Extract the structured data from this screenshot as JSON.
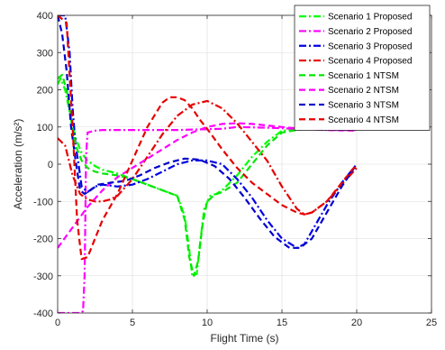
{
  "chart_data": {
    "type": "line",
    "xlabel": "Flight Time (s)",
    "ylabel": "Acceleration (m/s²)",
    "xlim": [
      0,
      25
    ],
    "ylim": [
      -400,
      400
    ],
    "xticks": [
      "0",
      "5",
      "10",
      "15",
      "20",
      "25"
    ],
    "yticks": [
      "-400",
      "-300",
      "-200",
      "-100",
      "0",
      "100",
      "200",
      "300",
      "400"
    ],
    "grid": true,
    "legend_position": "top-right",
    "series": [
      {
        "name": "Scenario 1 Proposed",
        "color": "#00ff00",
        "style": "dash-dot",
        "x": [
          0,
          0.2,
          0.5,
          0.8,
          1.2,
          1.6,
          2.0,
          2.5,
          3,
          4,
          5,
          6,
          7,
          8,
          8.5,
          8.8,
          9.0,
          9.3,
          9.5,
          9.8,
          10.2,
          10.6,
          11,
          12,
          13,
          14,
          15,
          16.5
        ],
        "y": [
          215,
          230,
          200,
          140,
          70,
          30,
          10,
          -5,
          -15,
          -25,
          -40,
          -55,
          -70,
          -85,
          -140,
          -230,
          -300,
          -295,
          -220,
          -120,
          -85,
          -80,
          -70,
          -30,
          20,
          60,
          90,
          95
        ]
      },
      {
        "name": "Scenario 2 Proposed",
        "color": "#ff00ff",
        "style": "dash-dot",
        "x": [
          0,
          1.5,
          1.7,
          1.8,
          1.85,
          1.9,
          2.0,
          2.5,
          3,
          5,
          8,
          11,
          12,
          14,
          16,
          18,
          20
        ],
        "y": [
          -400,
          -400,
          -395,
          -300,
          -150,
          20,
          85,
          90,
          92,
          92,
          92,
          95,
          100,
          98,
          95,
          92,
          92
        ]
      },
      {
        "name": "Scenario 3 Proposed",
        "color": "#0000e6",
        "style": "dash-dot",
        "x": [
          0,
          0.5,
          0.8,
          1.0,
          1.2,
          1.4,
          1.6,
          2.0,
          2.5,
          3.0,
          4,
          5,
          6,
          7,
          8,
          9,
          10,
          11,
          12,
          13,
          14,
          15,
          16,
          16.5,
          17,
          18,
          19,
          20
        ],
        "y": [
          400,
          400,
          300,
          150,
          50,
          0,
          -60,
          -75,
          -60,
          -55,
          -60,
          -55,
          -40,
          -20,
          0,
          10,
          10,
          0,
          -40,
          -90,
          -150,
          -200,
          -225,
          -215,
          -180,
          -110,
          -50,
          0
        ]
      },
      {
        "name": "Scenario 4 Proposed",
        "color": "#e60000",
        "style": "dash-dot",
        "x": [
          0,
          0.5,
          1.0,
          1.5,
          2,
          2.5,
          3,
          3.5,
          4,
          5,
          6,
          7,
          8,
          9,
          10,
          11,
          12,
          13,
          14,
          15,
          16,
          16.5,
          17,
          18,
          19,
          20
        ],
        "y": [
          70,
          50,
          -30,
          -80,
          -95,
          -100,
          -100,
          -95,
          -85,
          -40,
          20,
          80,
          130,
          160,
          170,
          150,
          110,
          60,
          10,
          -60,
          -120,
          -135,
          -130,
          -100,
          -55,
          -10
        ]
      },
      {
        "name": "Scenario 1 NTSM",
        "color": "#00e600",
        "style": "dashed",
        "x": [
          0,
          0.3,
          0.6,
          0.9,
          1.2,
          1.6,
          2.0,
          2.5,
          3,
          4,
          5,
          6,
          7,
          8,
          8.5,
          8.8,
          9.1,
          9.4,
          9.7,
          10,
          10.5,
          11,
          12,
          13,
          14,
          15,
          16.5
        ],
        "y": [
          230,
          240,
          200,
          120,
          50,
          10,
          -10,
          -20,
          -25,
          -30,
          -40,
          -55,
          -70,
          -85,
          -150,
          -250,
          -300,
          -260,
          -160,
          -100,
          -82,
          -75,
          -50,
          0,
          50,
          85,
          95
        ]
      },
      {
        "name": "Scenario 2 NTSM",
        "color": "#ff00ff",
        "style": "dashed",
        "x": [
          0,
          1,
          2,
          3,
          4,
          5,
          6,
          7,
          8,
          9,
          10,
          11,
          12,
          13,
          14,
          15,
          16,
          17,
          18,
          19,
          20
        ],
        "y": [
          -225,
          -170,
          -115,
          -70,
          -35,
          -10,
          15,
          40,
          65,
          85,
          100,
          108,
          110,
          108,
          104,
          100,
          96,
          94,
          92,
          91,
          90
        ]
      },
      {
        "name": "Scenario 3 NTSM",
        "color": "#0000cc",
        "style": "dashed",
        "x": [
          0,
          0.3,
          0.6,
          0.9,
          1.2,
          1.5,
          1.8,
          2.2,
          2.7,
          3.5,
          4.5,
          5.5,
          6.5,
          7.5,
          8.5,
          9.5,
          10.5,
          11.5,
          12.5,
          13.5,
          14.5,
          15.5,
          16.2,
          17,
          18,
          19,
          20
        ],
        "y": [
          400,
          350,
          250,
          100,
          10,
          -70,
          -80,
          -70,
          -55,
          -50,
          -45,
          -30,
          -10,
          5,
          15,
          12,
          -5,
          -40,
          -90,
          -145,
          -195,
          -225,
          -225,
          -200,
          -130,
          -60,
          0
        ]
      },
      {
        "name": "Scenario 4 NTSM",
        "color": "#e60000",
        "style": "dashed",
        "x": [
          0,
          0.6,
          1.0,
          1.3,
          1.6,
          2.0,
          2.5,
          3,
          4,
          5,
          6,
          7,
          7.5,
          8,
          8.5,
          9,
          9.5,
          10,
          11,
          12,
          13,
          14,
          15,
          16,
          16.5,
          17,
          18,
          19,
          20
        ],
        "y": [
          400,
          380,
          100,
          -150,
          -255,
          -250,
          -200,
          -150,
          -80,
          10,
          100,
          165,
          180,
          180,
          172,
          150,
          120,
          95,
          40,
          -10,
          -50,
          -80,
          -110,
          -130,
          -135,
          -130,
          -100,
          -50,
          0
        ]
      }
    ]
  }
}
